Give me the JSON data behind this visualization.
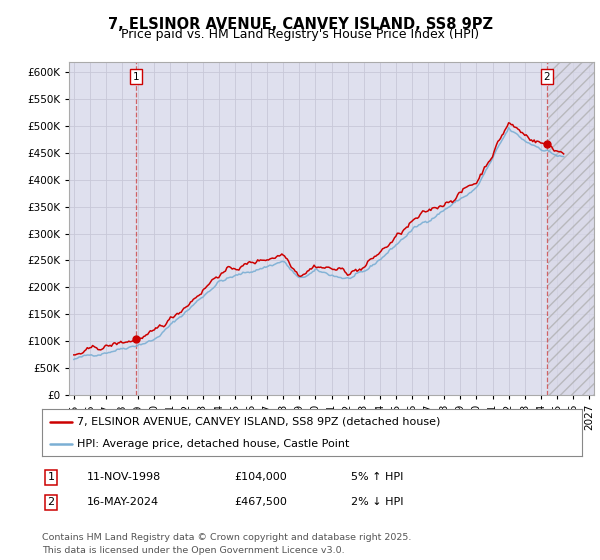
{
  "title": "7, ELSINOR AVENUE, CANVEY ISLAND, SS8 9PZ",
  "subtitle": "Price paid vs. HM Land Registry's House Price Index (HPI)",
  "ylim": [
    0,
    620000
  ],
  "yticks": [
    0,
    50000,
    100000,
    150000,
    200000,
    250000,
    300000,
    350000,
    400000,
    450000,
    500000,
    550000,
    600000
  ],
  "xlim_start": 1994.7,
  "xlim_end": 2027.3,
  "xticks": [
    1995,
    1996,
    1997,
    1998,
    1999,
    2000,
    2001,
    2002,
    2003,
    2004,
    2005,
    2006,
    2007,
    2008,
    2009,
    2010,
    2011,
    2012,
    2013,
    2014,
    2015,
    2016,
    2017,
    2018,
    2019,
    2020,
    2021,
    2022,
    2023,
    2024,
    2025,
    2026,
    2027
  ],
  "grid_color": "#c8c8d8",
  "plot_bg_color": "#dfe0ee",
  "hatch_bg_color": "#d0d0e0",
  "red_line_color": "#cc0000",
  "blue_line_color": "#7bafd4",
  "marker1_year": 1998.87,
  "marker1_value": 104000,
  "marker2_year": 2024.37,
  "marker2_value": 467500,
  "legend_line1": "7, ELSINOR AVENUE, CANVEY ISLAND, SS8 9PZ (detached house)",
  "legend_line2": "HPI: Average price, detached house, Castle Point",
  "table_row1": [
    "1",
    "11-NOV-1998",
    "£104,000",
    "5% ↑ HPI"
  ],
  "table_row2": [
    "2",
    "16-MAY-2024",
    "£467,500",
    "2% ↓ HPI"
  ],
  "footer": "Contains HM Land Registry data © Crown copyright and database right 2025.\nThis data is licensed under the Open Government Licence v3.0.",
  "title_fontsize": 10.5,
  "subtitle_fontsize": 9,
  "tick_fontsize": 7.5,
  "legend_fontsize": 8
}
